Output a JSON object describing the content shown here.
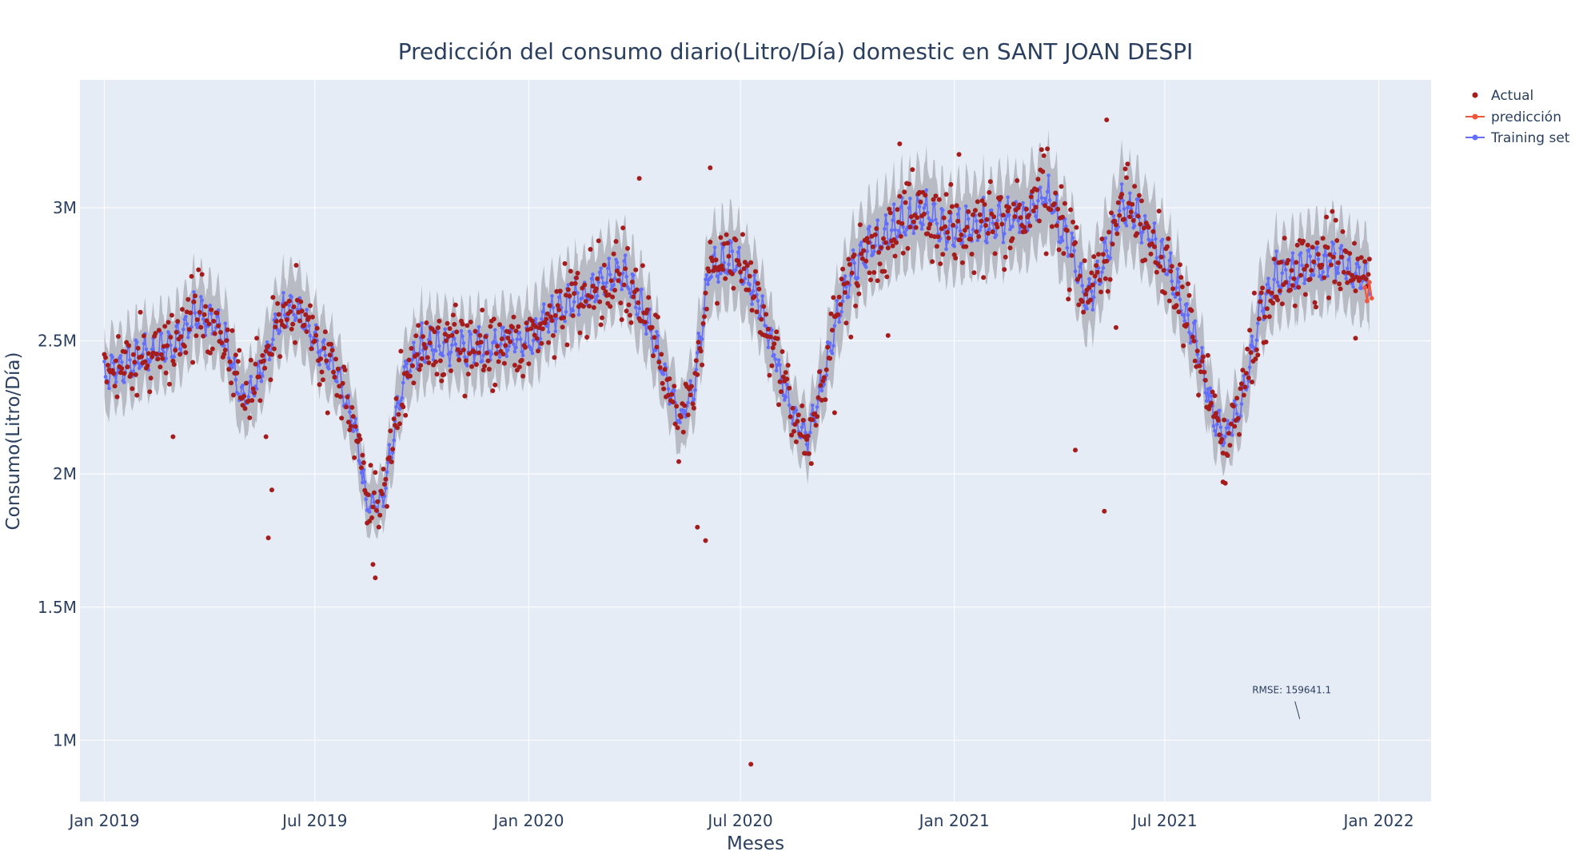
{
  "chart_data": {
    "type": "line",
    "title": "Predicción del consumo diario(Litro/Día) domestic en SANT JOAN DESPI",
    "xlabel": "Meses",
    "ylabel": "Consumo(Litro/Día)",
    "x_range": [
      "2018-12-11",
      "2022-02-15"
    ],
    "y_range": [
      770000,
      3480000
    ],
    "x_ticks": [
      {
        "date": "2019-01-01",
        "label": "Jan 2019"
      },
      {
        "date": "2019-07-01",
        "label": "Jul 2019"
      },
      {
        "date": "2020-01-01",
        "label": "Jan 2020"
      },
      {
        "date": "2020-07-01",
        "label": "Jul 2020"
      },
      {
        "date": "2021-01-01",
        "label": "Jan 2021"
      },
      {
        "date": "2021-07-01",
        "label": "Jul 2021"
      },
      {
        "date": "2022-01-01",
        "label": "Jan 2022"
      }
    ],
    "y_ticks": [
      {
        "value": 1000000,
        "label": "1M"
      },
      {
        "value": 1500000,
        "label": "1.5M"
      },
      {
        "value": 2000000,
        "label": "2M"
      },
      {
        "value": 2500000,
        "label": "2.5M"
      },
      {
        "value": 3000000,
        "label": "3M"
      }
    ],
    "grid": true,
    "legend_position": "top-right",
    "legend": [
      "Actual",
      "predicción",
      "Training set"
    ],
    "colors": {
      "actual": "#a51c1c",
      "prediccion": "#ef553b",
      "training": "#636efa",
      "band": "#b5b8c0",
      "plot_bg": "#e5ecf6",
      "grid": "#ffffff",
      "text": "#2a3f5f"
    },
    "series": [
      {
        "name": "Training set",
        "marker": "line+markers",
        "anchors": [
          [
            "2019-01-01",
            2370000
          ],
          [
            "2019-02-01",
            2440000
          ],
          [
            "2019-03-01",
            2480000
          ],
          [
            "2019-03-20",
            2600000
          ],
          [
            "2019-04-10",
            2560000
          ],
          [
            "2019-05-01",
            2270000
          ],
          [
            "2019-05-15",
            2370000
          ],
          [
            "2019-06-01",
            2580000
          ],
          [
            "2019-06-15",
            2640000
          ],
          [
            "2019-07-01",
            2500000
          ],
          [
            "2019-07-20",
            2380000
          ],
          [
            "2019-08-05",
            2170000
          ],
          [
            "2019-08-15",
            1880000
          ],
          [
            "2019-08-28",
            1900000
          ],
          [
            "2019-09-15",
            2350000
          ],
          [
            "2019-10-01",
            2480000
          ],
          [
            "2019-11-15",
            2470000
          ],
          [
            "2019-12-15",
            2500000
          ],
          [
            "2020-01-01",
            2490000
          ],
          [
            "2020-01-20",
            2600000
          ],
          [
            "2020-02-20",
            2680000
          ],
          [
            "2020-03-20",
            2760000
          ],
          [
            "2020-04-10",
            2600000
          ],
          [
            "2020-04-25",
            2400000
          ],
          [
            "2020-05-10",
            2200000
          ],
          [
            "2020-05-22",
            2330000
          ],
          [
            "2020-06-05",
            2780000
          ],
          [
            "2020-06-25",
            2800000
          ],
          [
            "2020-07-15",
            2680000
          ],
          [
            "2020-08-01",
            2420000
          ],
          [
            "2020-08-15",
            2220000
          ],
          [
            "2020-08-28",
            2130000
          ],
          [
            "2020-09-10",
            2350000
          ],
          [
            "2020-09-25",
            2640000
          ],
          [
            "2020-10-15",
            2840000
          ],
          [
            "2020-11-15",
            2930000
          ],
          [
            "2020-12-05",
            2980000
          ],
          [
            "2020-12-25",
            2920000
          ],
          [
            "2021-02-01",
            2930000
          ],
          [
            "2021-03-01",
            2960000
          ],
          [
            "2021-03-20",
            3050000
          ],
          [
            "2021-04-08",
            2880000
          ],
          [
            "2021-04-25",
            2650000
          ],
          [
            "2021-05-10",
            2800000
          ],
          [
            "2021-05-25",
            3010000
          ],
          [
            "2021-06-10",
            2950000
          ],
          [
            "2021-06-30",
            2800000
          ],
          [
            "2021-07-15",
            2650000
          ],
          [
            "2021-08-01",
            2430000
          ],
          [
            "2021-08-12",
            2220000
          ],
          [
            "2021-08-22",
            2140000
          ],
          [
            "2021-09-05",
            2260000
          ],
          [
            "2021-09-20",
            2600000
          ],
          [
            "2021-10-05",
            2740000
          ],
          [
            "2021-11-01",
            2780000
          ],
          [
            "2021-11-25",
            2800000
          ],
          [
            "2021-12-10",
            2760000
          ],
          [
            "2021-12-24",
            2730000
          ]
        ]
      },
      {
        "name": "predicción",
        "marker": "line+markers",
        "values": [
          [
            "2021-12-20",
            2700000
          ],
          [
            "2021-12-22",
            2650000
          ],
          [
            "2021-12-24",
            2720000
          ],
          [
            "2021-12-26",
            2660000
          ]
        ]
      },
      {
        "name": "Actual",
        "marker": "markers",
        "outliers": [
          [
            "2019-05-22",
            1760000
          ],
          [
            "2019-05-25",
            1940000
          ],
          [
            "2019-05-20",
            2140000
          ],
          [
            "2019-03-01",
            2140000
          ],
          [
            "2019-08-22",
            1610000
          ],
          [
            "2019-08-20",
            1660000
          ],
          [
            "2020-07-10",
            910000
          ],
          [
            "2020-06-01",
            1750000
          ],
          [
            "2020-05-25",
            1800000
          ],
          [
            "2020-08-25",
            2140000
          ],
          [
            "2020-09-20",
            2230000
          ],
          [
            "2020-11-05",
            2520000
          ],
          [
            "2021-04-15",
            2090000
          ],
          [
            "2021-05-10",
            1860000
          ],
          [
            "2021-05-12",
            3330000
          ],
          [
            "2021-05-20",
            2550000
          ],
          [
            "2021-08-20",
            1970000
          ],
          [
            "2021-12-12",
            2510000
          ],
          [
            "2020-04-05",
            3110000
          ],
          [
            "2020-06-05",
            3150000
          ],
          [
            "2021-01-05",
            3200000
          ],
          [
            "2020-11-15",
            3240000
          ]
        ]
      }
    ],
    "annotation": {
      "text": "RMSE: 159641.1",
      "date": "2021-10-25",
      "value": 1050000
    }
  }
}
